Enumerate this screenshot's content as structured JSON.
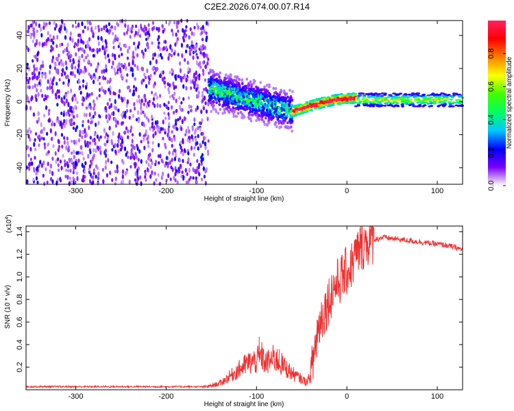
{
  "title": "C2E2.2026.074.00.07.R14",
  "chart_data": [
    {
      "type": "heatmap",
      "xlabel": "Height of straight line (km)",
      "ylabel": "Frequency (Hz)",
      "xlim": [
        -355,
        128
      ],
      "ylim": [
        -50,
        49
      ],
      "x_ticks": [
        -300,
        -200,
        -100,
        0,
        100
      ],
      "y_ticks": [
        40,
        20,
        0,
        -20,
        -40
      ],
      "colorbar": {
        "label": "Normalized spectral amplitude",
        "range": [
          0,
          1
        ],
        "ticks": [
          "0.0",
          "0.2",
          "0.4",
          "0.6",
          "0.8"
        ],
        "tick_values": [
          0,
          0.2,
          0.4,
          0.6,
          0.8
        ],
        "colors": [
          "#ffffff",
          "#7a00ff",
          "#0000ff",
          "#00c8ff",
          "#00ff60",
          "#40ff00",
          "#ffff00",
          "#ff8000",
          "#ff0000",
          "#ff2060"
        ]
      },
      "regions": [
        {
          "x": [
            -355,
            -153
          ],
          "freq": [
            -50,
            49
          ],
          "amplitude": 0.15,
          "pattern": "scattered speckle"
        },
        {
          "x": [
            -153,
            -60
          ],
          "freq_center": [
            8,
            -6
          ],
          "freq_halfwidth": 10,
          "amplitude": 0.35
        },
        {
          "x": [
            -60,
            10
          ],
          "freq_center": [
            -6,
            2
          ],
          "amplitude": 0.9
        },
        {
          "x": [
            10,
            128
          ],
          "freq_center": 1,
          "freq_halfwidth": 4,
          "amplitude": 0.55
        }
      ]
    },
    {
      "type": "line",
      "xlabel": "Height of straight line (km)",
      "ylabel": "SNR (10 * v/v)",
      "y_multiplier": "(x10",
      "y_multiplier_exp": "4",
      "y_multiplier_close": ")",
      "xlim": [
        -355,
        128
      ],
      "ylim": [
        0,
        1.45
      ],
      "x_ticks": [
        -300,
        -200,
        -100,
        0,
        100
      ],
      "y_ticks": [
        0.2,
        0.4,
        0.6,
        0.8,
        1.0,
        1.2,
        1.4
      ],
      "color": "#ee3030",
      "series": [
        {
          "x": [
            -355,
            -300,
            -250,
            -200,
            -160,
            -150,
            -140,
            -130,
            -120,
            -110,
            -100,
            -95,
            -90,
            -80,
            -70,
            -60,
            -50,
            -45,
            -40,
            -35,
            -30,
            -25,
            -20,
            -15,
            -10,
            -5,
            0,
            5,
            10,
            15,
            20,
            30,
            40,
            50,
            60,
            70,
            80,
            90,
            100,
            110,
            120,
            128
          ],
          "values": [
            0.02,
            0.02,
            0.02,
            0.02,
            0.02,
            0.03,
            0.05,
            0.1,
            0.15,
            0.2,
            0.22,
            0.26,
            0.2,
            0.24,
            0.18,
            0.12,
            0.08,
            0.06,
            0.1,
            0.4,
            0.6,
            0.7,
            0.8,
            0.9,
            0.95,
            1.0,
            1.05,
            1.1,
            1.2,
            1.25,
            1.3,
            1.33,
            1.35,
            1.34,
            1.33,
            1.32,
            1.31,
            1.3,
            1.29,
            1.28,
            1.26,
            1.24
          ]
        }
      ],
      "spikes": [
        {
          "x": -97,
          "value": 0.47
        },
        {
          "x": -75,
          "value": 0.36
        },
        {
          "x": -33,
          "value": 0.62
        },
        {
          "x": -28,
          "value": 0.7
        },
        {
          "x": -17,
          "value": 0.95
        },
        {
          "x": 15,
          "value": 1.45
        }
      ]
    }
  ]
}
